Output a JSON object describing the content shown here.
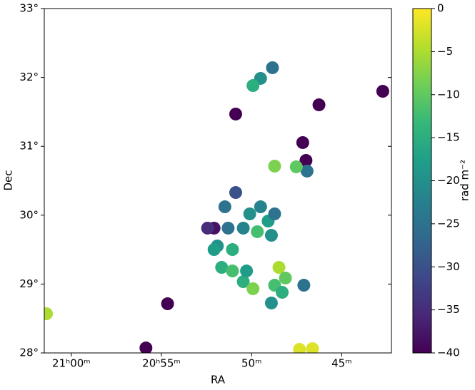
{
  "chart_data": {
    "type": "image",
    "xlabel": "RA",
    "ylabel": "Dec",
    "colorbar_label": "rad m⁻²",
    "xlim": [
      21.025,
      20.704
    ],
    "ylim": [
      28,
      33
    ],
    "xticks": [
      {
        "value": 21.0,
        "label": "21ʰ00ᵐ"
      },
      {
        "value": 20.9167,
        "label": "20ʰ55ᵐ"
      },
      {
        "value": 20.8333,
        "label": "50ᵐ"
      },
      {
        "value": 20.75,
        "label": "45ᵐ"
      }
    ],
    "yticks": [
      {
        "value": 28,
        "label": "28°"
      },
      {
        "value": 29,
        "label": "29°"
      },
      {
        "value": 30,
        "label": "30°"
      },
      {
        "value": 31,
        "label": "31°"
      },
      {
        "value": 32,
        "label": "32°"
      },
      {
        "value": 33,
        "label": "33°"
      }
    ],
    "colormap": "viridis",
    "clim": [
      -40,
      0
    ],
    "cticks": [
      0,
      {
        "value": -5,
        "label": "−5"
      },
      {
        "value": -10,
        "label": "−10"
      },
      {
        "value": -15,
        "label": "−15"
      },
      {
        "value": -20,
        "label": "−20"
      },
      {
        "value": -25,
        "label": "−25"
      },
      {
        "value": -30,
        "label": "−30"
      },
      {
        "value": -35,
        "label": "−35"
      },
      {
        "value": -40,
        "label": "−40"
      }
    ],
    "x": [
      20.848,
      20.858,
      20.868,
      20.855,
      20.841,
      20.865,
      20.851,
      20.861,
      20.851,
      20.841,
      20.832,
      20.838,
      20.835,
      20.825,
      20.818,
      20.812,
      20.828,
      20.815,
      20.808,
      20.812,
      20.802,
      20.815,
      20.805,
      20.785,
      20.825,
      20.832,
      20.814,
      20.771,
      20.786,
      20.783,
      20.782,
      20.812,
      20.792,
      20.911,
      21.023,
      20.931,
      20.789,
      20.777,
      20.712,
      20.848,
      20.868,
      20.874
    ],
    "y": [
      30.329,
      30.122,
      29.812,
      29.812,
      29.812,
      29.553,
      29.501,
      29.242,
      29.19,
      29.035,
      28.932,
      29.19,
      30.019,
      30.122,
      29.915,
      30.019,
      29.76,
      29.708,
      29.242,
      28.983,
      29.087,
      28.725,
      28.88,
      28.983,
      31.986,
      31.882,
      32.141,
      31.602,
      31.054,
      30.795,
      30.64,
      30.712,
      30.702,
      28.714,
      28.569,
      28.072,
      28.052,
      28.062,
      31.799,
      31.468,
      29.501,
      29.812
    ],
    "values": [
      -30,
      -25,
      -38,
      -25,
      -22,
      -20,
      -15,
      -15,
      -12,
      -15,
      -8,
      -18,
      -20,
      -22,
      -18,
      -25,
      -12,
      -20,
      -5,
      -12,
      -10,
      -20,
      -15,
      -25,
      -20,
      -15,
      -25,
      -40,
      -40,
      -40,
      -25,
      -8,
      -10,
      -40,
      -5,
      -40,
      -2,
      -2,
      -40,
      -40,
      -18,
      -35
    ]
  }
}
